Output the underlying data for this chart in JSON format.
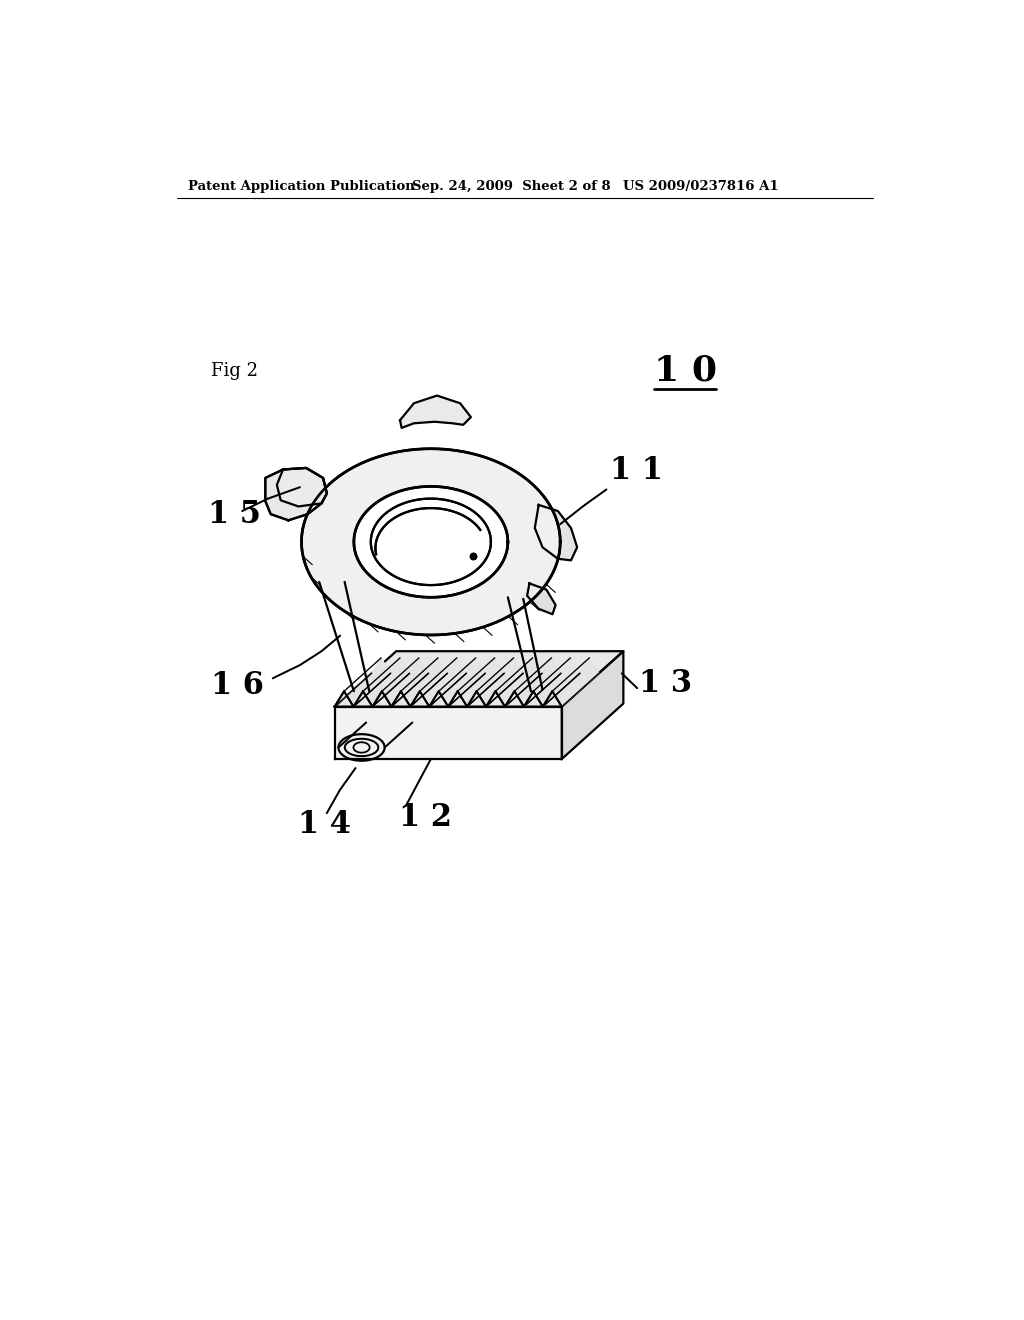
{
  "background_color": "#ffffff",
  "header_left": "Patent Application Publication",
  "header_mid": "Sep. 24, 2009  Sheet 2 of 8",
  "header_right": "US 2009/0237816 A1",
  "fig_label": "Fig 2",
  "part_label_10": "1 0",
  "part_label_11": "1 1",
  "part_label_12": "1 2",
  "part_label_13": "1 3",
  "part_label_14": "1 4",
  "part_label_15": "1 5",
  "part_label_16": "1 6",
  "line_color": "#000000",
  "line_width": 1.6,
  "header_fontsize": 9.5,
  "label_fontsize": 22,
  "fig_label_fontsize": 13
}
